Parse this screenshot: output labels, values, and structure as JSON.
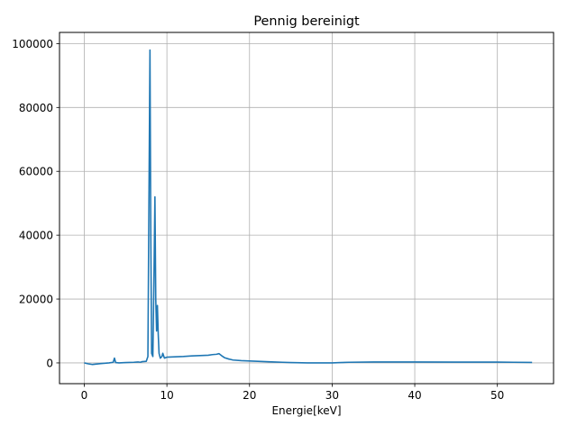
{
  "chart_data": {
    "type": "line",
    "title": "Pennig bereinigt",
    "xlabel": "Energie[keV]",
    "ylabel": "",
    "xlim": [
      -3,
      56.8
    ],
    "ylim": [
      -6500,
      103500
    ],
    "x_ticks": [
      0,
      10,
      20,
      30,
      40,
      50
    ],
    "y_ticks": [
      0,
      20000,
      40000,
      60000,
      80000,
      100000
    ],
    "x_tick_labels": [
      "0",
      "10",
      "20",
      "30",
      "40",
      "50"
    ],
    "y_tick_labels": [
      "0",
      "20000",
      "40000",
      "60000",
      "80000",
      "100000"
    ],
    "grid": true,
    "legend": "none",
    "series": [
      {
        "color": "#1f77b4",
        "x": [
          0,
          0.5,
          1.0,
          2.0,
          3.0,
          3.5,
          3.65,
          3.8,
          4.2,
          5.0,
          6.0,
          6.5,
          6.8,
          7.0,
          7.5,
          7.7,
          7.85,
          7.95,
          8.05,
          8.15,
          8.3,
          8.45,
          8.55,
          8.65,
          8.75,
          8.85,
          8.95,
          9.05,
          9.2,
          9.4,
          9.5,
          9.7,
          10.0,
          11.0,
          12.0,
          13.0,
          14.0,
          15.0,
          15.5,
          16.0,
          16.3,
          16.6,
          17.0,
          17.5,
          18.0,
          19.0,
          20.0,
          21.0,
          22.0,
          23.0,
          24.0,
          25.0,
          27.0,
          29.0,
          30.0,
          31.0,
          32.0,
          35.0,
          40.0,
          45.0,
          50.0,
          52.0,
          54.2
        ],
        "y": [
          0,
          -300,
          -500,
          -200,
          0,
          200,
          1500,
          100,
          0,
          100,
          200,
          300,
          200,
          400,
          500,
          2000,
          60000,
          98000,
          40000,
          3000,
          2000,
          30000,
          52000,
          20000,
          10000,
          18000,
          9000,
          3000,
          1500,
          2000,
          3000,
          1500,
          1800,
          1900,
          2000,
          2200,
          2300,
          2400,
          2600,
          2700,
          2900,
          2300,
          1600,
          1200,
          900,
          700,
          600,
          500,
          400,
          300,
          200,
          100,
          0,
          0,
          0,
          100,
          200,
          300,
          300,
          250,
          250,
          200,
          150
        ]
      }
    ]
  }
}
